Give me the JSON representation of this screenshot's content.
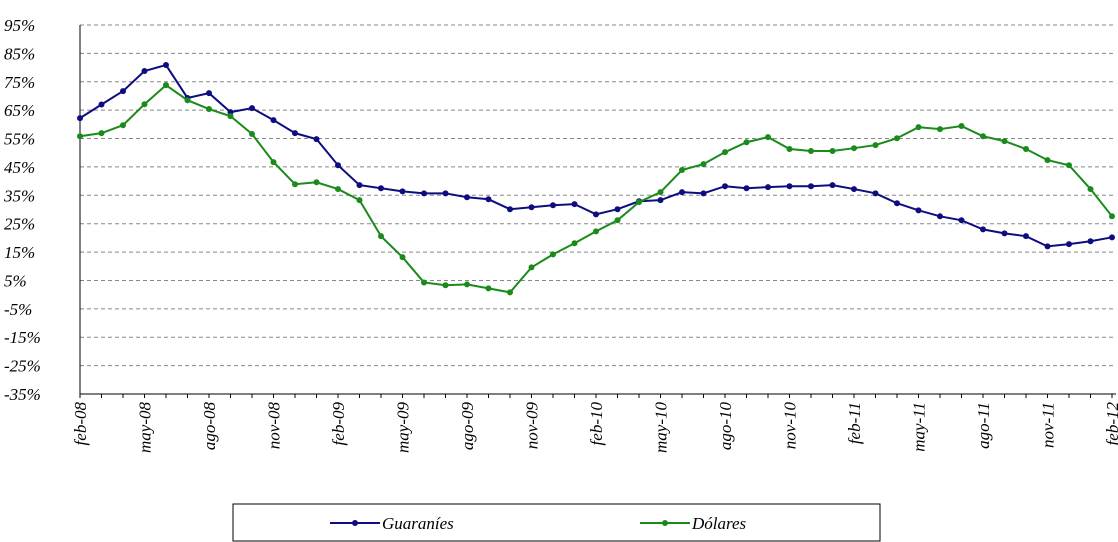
{
  "chart_data": {
    "type": "line",
    "categories": [
      "feb-08",
      null,
      null,
      "may-08",
      null,
      null,
      "ago-08",
      null,
      null,
      "nov-08",
      null,
      null,
      "feb-09",
      null,
      null,
      "may-09",
      null,
      null,
      "ago-09",
      null,
      null,
      "nov-09",
      null,
      null,
      "feb-10",
      null,
      null,
      "may-10",
      null,
      null,
      "ago-10",
      null,
      null,
      "nov-10",
      null,
      null,
      "feb-11",
      null,
      null,
      "may-11",
      null,
      null,
      "ago-11",
      null,
      null,
      "nov-11",
      null,
      null,
      "feb-12"
    ],
    "series": [
      {
        "name": "Guaraníes",
        "color": "#0d0d80",
        "values": [
          62.2,
          67,
          71.7,
          78.8,
          80.9,
          69.3,
          71,
          64.3,
          65.7,
          61.5,
          56.9,
          54.8,
          45.6,
          38.6,
          37.5,
          36.4,
          35.7,
          35.7,
          34.3,
          33.6,
          30.1,
          30.8,
          31.5,
          31.9,
          28.3,
          30.1,
          32.9,
          33.3,
          36.1,
          35.7,
          38.2,
          37.5,
          37.9,
          38.2,
          38.2,
          38.6,
          37.2,
          35.7,
          32.2,
          29.7,
          27.6,
          26.2,
          23,
          21.6,
          20.6,
          17,
          17.8,
          18.8,
          20.2
        ]
      },
      {
        "name": "Dólares",
        "color": "#1a8a1a",
        "values": [
          55.8,
          56.9,
          59.7,
          67.1,
          73.8,
          68.5,
          65.4,
          62.9,
          56.6,
          46.7,
          38.9,
          39.6,
          37.2,
          33.3,
          20.6,
          13.2,
          4.3,
          3.3,
          3.6,
          2.2,
          0.8,
          9.6,
          14.2,
          18.1,
          22.3,
          26.2,
          32.6,
          36.1,
          43.9,
          46,
          50.2,
          53.7,
          55.5,
          51.3,
          50.6,
          50.6,
          51.6,
          52.7,
          55.1,
          59,
          58.3,
          59.4,
          55.8,
          54.1,
          51.3,
          47.4,
          45.6,
          37.2,
          27.6
        ]
      }
    ],
    "ylim": [
      -35,
      95
    ],
    "yticks": [
      {
        "value": -35,
        "label": "-35%"
      },
      {
        "value": -25,
        "label": "-25%"
      },
      {
        "value": -15,
        "label": "-15%"
      },
      {
        "value": -5,
        "label": "-5%"
      },
      {
        "value": 5,
        "label": "5%"
      },
      {
        "value": 15,
        "label": "15%"
      },
      {
        "value": 25,
        "label": "25%"
      },
      {
        "value": 35,
        "label": "35%"
      },
      {
        "value": 45,
        "label": "45%"
      },
      {
        "value": 55,
        "label": "55%"
      },
      {
        "value": 65,
        "label": "65%"
      },
      {
        "value": 75,
        "label": "75%"
      },
      {
        "value": 85,
        "label": "85%"
      },
      {
        "value": 95,
        "label": "95%"
      }
    ],
    "grid": true,
    "legend": "bottom"
  }
}
